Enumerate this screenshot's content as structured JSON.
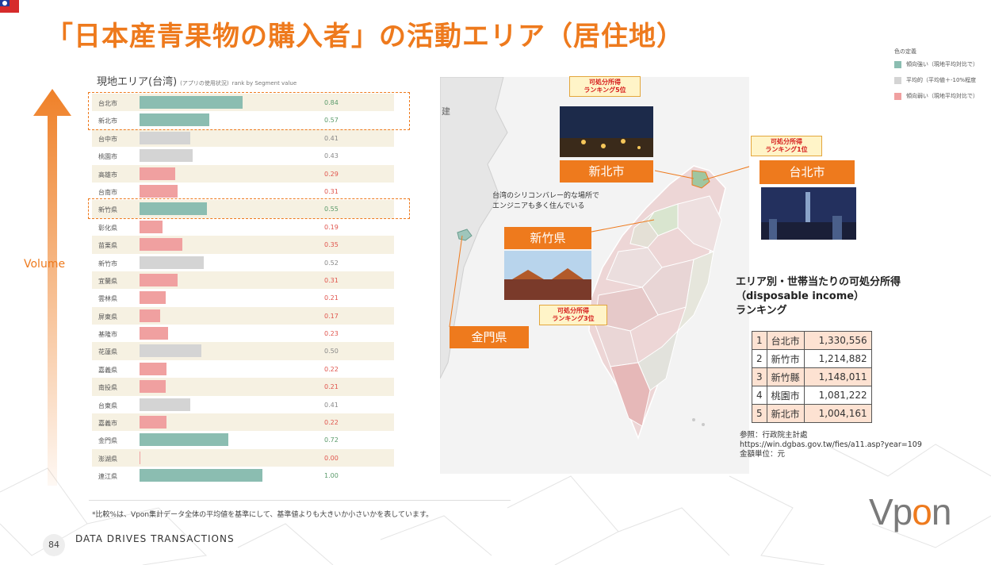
{
  "header": {
    "title": "「日本産青果物の購入者」の活動エリア（居住地）"
  },
  "legend": {
    "title": "色の定義",
    "items": [
      {
        "label": "傾向強い（現地平均対比で）",
        "color": "#8bbdb1"
      },
      {
        "label": "平均的（平均値＋-10%程度",
        "color": "#d4d4d4"
      },
      {
        "label": "傾向弱い（現地平均対比で）",
        "color": "#f0a0a0"
      }
    ]
  },
  "colors": {
    "accent": "#ee7a1d",
    "high": "#8bbdb1",
    "avg": "#d4d4d4",
    "low": "#f0a0a0",
    "high_text": "#5a9a6a",
    "avg_text": "#888888",
    "low_text": "#e0544c"
  },
  "volume_label": "Volume",
  "panel": {
    "title": "現地エリア(台湾)",
    "subtitle": "(アプリの使用状況)",
    "rank_note": "rank by Segment value"
  },
  "chart_data": {
    "type": "bar",
    "orientation": "horizontal",
    "categories": [
      "台北市",
      "新北市",
      "台中市",
      "桃園市",
      "高雄市",
      "台南市",
      "新竹県",
      "彰化県",
      "苗栗県",
      "新竹市",
      "宜蘭県",
      "雲林県",
      "屏東県",
      "基隆市",
      "花蓮県",
      "嘉義県",
      "南投県",
      "台東県",
      "嘉義市",
      "金門県",
      "澎湖県",
      "連江県"
    ],
    "values": [
      0.84,
      0.57,
      0.41,
      0.43,
      0.29,
      0.31,
      0.55,
      0.19,
      0.35,
      0.52,
      0.31,
      0.21,
      0.17,
      0.23,
      0.5,
      0.22,
      0.21,
      0.41,
      0.22,
      0.72,
      0.0,
      1.0
    ],
    "labels": [
      "0.84",
      "0.57",
      "0.41",
      "0.43",
      "0.29",
      "0.31",
      "0.55",
      "0.19",
      "0.35",
      "0.52",
      "0.31",
      "0.21",
      "0.17",
      "0.23",
      "0.50",
      "0.22",
      "0.21",
      "0.41",
      "0.22",
      "0.72",
      "0.00",
      "1.00"
    ],
    "levels": [
      "high",
      "high",
      "avg",
      "avg",
      "low",
      "low",
      "high",
      "low",
      "low",
      "avg",
      "low",
      "low",
      "low",
      "low",
      "avg",
      "low",
      "low",
      "avg",
      "low",
      "high",
      "low",
      "high"
    ],
    "xlim": [
      0,
      1
    ],
    "highlighted": [
      "台北市",
      "新北市",
      "新竹県"
    ]
  },
  "map": {
    "left_label": "建",
    "labels": {
      "shinhoku": "新北市",
      "taihoku": "台北市",
      "shinchiku": "新竹県",
      "kinmon": "金門県"
    },
    "badges": {
      "shinhoku": "可処分所得\nランキング5位",
      "taihoku": "可処分所得\nランキング1位",
      "shinchiku": "可処分所得\nランキング3位"
    },
    "note": "台湾のシリコンバレー的な場所で\nエンジニアも多く住んでいる"
  },
  "income": {
    "title": "エリア別・世帯当たりの可処分所得\n（disposable income）\nランキング",
    "rows": [
      {
        "rank": "1",
        "area": "台北市",
        "value": "1,330,556"
      },
      {
        "rank": "2",
        "area": "新竹市",
        "value": "1,214,882"
      },
      {
        "rank": "3",
        "area": "新竹縣",
        "value": "1,148,011"
      },
      {
        "rank": "4",
        "area": "桃園市",
        "value": "1,081,222"
      },
      {
        "rank": "5",
        "area": "新北市",
        "value": "1,004,161"
      }
    ],
    "source": "参照：行政院主計處\nhttps://win.dgbas.gov.tw/fies/a11.asp?year=109\n金額単位：元"
  },
  "footnote": "*比較%は、Vpon集計データ全体の平均値を基準にして、基準値よりも大きいか小さいかを表しています。",
  "footer": {
    "page_number": "84",
    "tagline": "DATA DRIVES TRANSACTIONS",
    "logo_text": "Vpon"
  }
}
